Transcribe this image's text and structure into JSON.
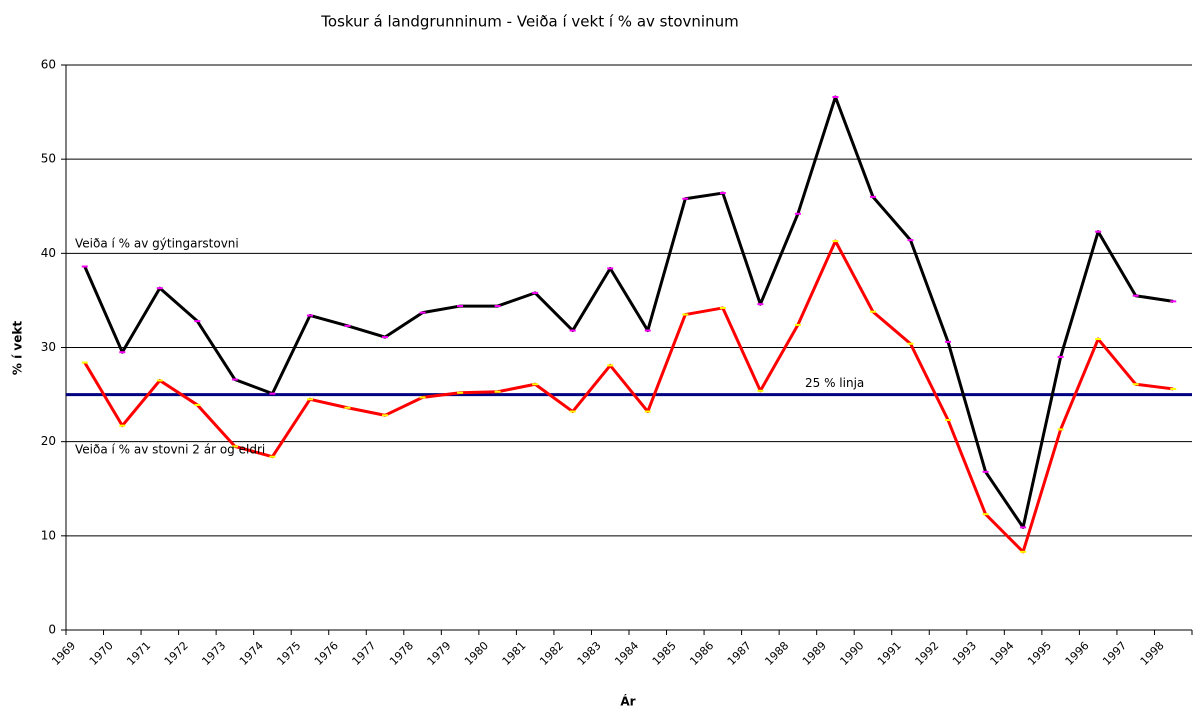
{
  "chart_data": {
    "type": "line",
    "title": "Toskur á landgrunninum -  Veiða í vekt í % av stovninum",
    "y_label": "% í vekt",
    "x_label": "Ár",
    "categories": [
      "1969",
      "1970",
      "1971",
      "1972",
      "1973",
      "1974",
      "1975",
      "1976",
      "1977",
      "1978",
      "1979",
      "1980",
      "1981",
      "1982",
      "1983",
      "1984",
      "1985",
      "1986",
      "1987",
      "1988",
      "1989",
      "1990",
      "1991",
      "1992",
      "1993",
      "1994",
      "1995",
      "1996",
      "1997",
      "1998"
    ],
    "series": [
      {
        "name": "Veiða í % av gýtingarstovni",
        "color": "#000000",
        "marker_color": "#ff00ff",
        "values": [
          38.6,
          29.5,
          36.3,
          32.8,
          26.6,
          25.1,
          33.4,
          32.3,
          31.1,
          33.7,
          34.4,
          34.4,
          35.8,
          31.8,
          38.4,
          31.8,
          45.8,
          46.4,
          34.6,
          44.2,
          56.6,
          46.0,
          41.4,
          30.6,
          16.8,
          10.9,
          29.0,
          42.3,
          35.5,
          34.9
        ]
      },
      {
        "name": "Veiða í % av stovni 2 ár og eldri",
        "color": "#ff0000",
        "marker_color": "#ffff00",
        "values": [
          28.4,
          21.7,
          26.5,
          23.9,
          19.5,
          18.4,
          24.5,
          23.6,
          22.8,
          24.7,
          25.2,
          25.3,
          26.1,
          23.2,
          28.1,
          23.2,
          33.5,
          34.2,
          25.4,
          32.4,
          41.3,
          33.8,
          30.4,
          22.3,
          12.3,
          8.3,
          21.3,
          30.9,
          26.1,
          25.6
        ]
      }
    ],
    "reference_line": {
      "value": 25,
      "label": "25 % linja",
      "color": "#000080"
    },
    "ylim": [
      0,
      60
    ],
    "yticks": [
      0,
      10,
      20,
      30,
      40,
      50,
      60
    ],
    "grid": true
  }
}
